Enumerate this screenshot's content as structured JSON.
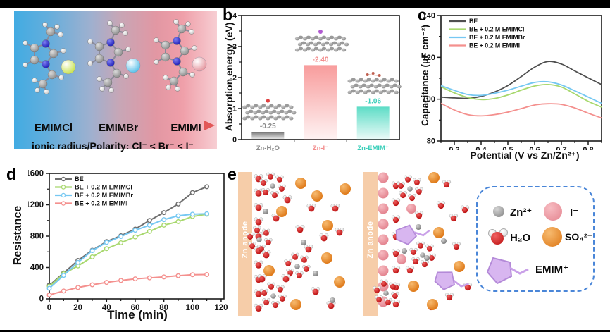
{
  "figure": {
    "panel_labels": {
      "a": "a",
      "b": "b",
      "c": "c",
      "d": "d",
      "e": "e"
    }
  },
  "panel_a": {
    "molecules": [
      {
        "label": "EMIMCl",
        "anion_color": "#c6e148"
      },
      {
        "label": "EMIMBr",
        "anion_color": "#55bfe9"
      },
      {
        "label": "EMIMI",
        "anion_color": "#e4939c"
      }
    ],
    "caption": "ionic radius/Polarity:  Cl⁻ <  Br⁻ <  I⁻"
  },
  "chart_data": [
    {
      "id": "b",
      "type": "bar",
      "ylabel": "Absorption energy (eV)",
      "ylim": [
        0,
        -4
      ],
      "yticks": [
        0,
        -1,
        -2,
        -3,
        -4
      ],
      "categories": [
        "Zn-H₂O",
        "Zn-I⁻",
        "Zn-EMIM⁺"
      ],
      "values": [
        -0.25,
        -2.4,
        -1.06
      ],
      "value_labels": [
        "-0.25",
        "-2.40",
        "-1.06"
      ],
      "bar_colors": [
        "#787878",
        "#f89c9c",
        "#5ddcc6"
      ],
      "label_colors": [
        "#8a8a8a",
        "#f28b8b",
        "#3bcfba"
      ],
      "cluster_accents": [
        "red-dot",
        "purple-dot",
        "emim-sketch"
      ]
    },
    {
      "id": "c",
      "type": "line",
      "ylabel": "Capacitance (μF cm⁻²)",
      "xlabel": "Potential (V vs Zn/Zn²⁺)",
      "xlim": [
        0.25,
        0.85
      ],
      "ylim": [
        80,
        140
      ],
      "xticks": [
        0.3,
        0.4,
        0.5,
        0.6,
        0.7,
        0.8
      ],
      "yticks": [
        80,
        100,
        120,
        140
      ],
      "x": [
        0.25,
        0.3,
        0.35,
        0.4,
        0.45,
        0.5,
        0.55,
        0.6,
        0.65,
        0.7,
        0.75,
        0.8,
        0.85
      ],
      "series": [
        {
          "name": "BE",
          "color": "#4f4f4f",
          "y": [
            101,
            100.6,
            100.4,
            101.3,
            103.4,
            106.5,
            110.8,
            115.3,
            118,
            116.8,
            113.5,
            110.2,
            107
          ]
        },
        {
          "name": "BE + 0.2 M EMIMCl",
          "color": "#a8d86e",
          "y": [
            106,
            103,
            100.8,
            99.8,
            100.3,
            102,
            104.3,
            106.3,
            107,
            105.8,
            102.5,
            99,
            96.2
          ]
        },
        {
          "name": "BE + 0.2 M EMIMBr",
          "color": "#76c8f2",
          "y": [
            106.5,
            104.2,
            102.2,
            101.8,
            102.8,
            104.3,
            106.2,
            108,
            108.3,
            106.8,
            104,
            101,
            98
          ]
        },
        {
          "name": "BE + 0.2 M EMIMI",
          "color": "#f4908e",
          "y": [
            98,
            94.8,
            92.6,
            92,
            92.6,
            93.8,
            95.5,
            97.2,
            97.8,
            97.5,
            95.8,
            93.3,
            91
          ]
        }
      ],
      "legend_position": "top-left"
    },
    {
      "id": "d",
      "type": "line",
      "ylabel": "Resistance",
      "xlabel": "Time (min)",
      "xlim": [
        0,
        122
      ],
      "ylim": [
        0,
        1600
      ],
      "xticks": [
        0,
        20,
        40,
        60,
        80,
        100,
        120
      ],
      "yticks": [
        0,
        400,
        800,
        1200,
        1600
      ],
      "x": [
        0,
        10,
        20,
        30,
        40,
        50,
        60,
        70,
        80,
        90,
        100,
        110
      ],
      "series": [
        {
          "name": "BE",
          "color": "#6e6e6e",
          "y": [
            170,
            330,
            490,
            620,
            730,
            805,
            890,
            1000,
            1100,
            1210,
            1355,
            1430
          ]
        },
        {
          "name": "BE + 0.2 M EMIMCl",
          "color": "#a8d86e",
          "y": [
            160,
            320,
            420,
            535,
            640,
            715,
            790,
            860,
            940,
            985,
            1050,
            1080
          ]
        },
        {
          "name": "BE + 0.2 M EMIMBr",
          "color": "#76c8f2",
          "y": [
            135,
            300,
            465,
            615,
            720,
            795,
            875,
            940,
            1010,
            1060,
            1080,
            1085
          ]
        },
        {
          "name": "BE + 0.2 M EMIMI",
          "color": "#f4908e",
          "y": [
            50,
            100,
            145,
            180,
            210,
            235,
            255,
            268,
            280,
            295,
            308,
            310
          ]
        }
      ],
      "legend_position": "top-left"
    }
  ],
  "panel_e": {
    "anode_label": "Zn anode",
    "legend": [
      {
        "icon": "zn-ion-icon",
        "label": "Zn²⁺"
      },
      {
        "icon": "iodide-ion-icon",
        "label": "I⁻"
      },
      {
        "icon": "water-molecule-icon",
        "label": "H₂O"
      },
      {
        "icon": "sulfate-ion-icon",
        "label": "SO₄²⁻"
      },
      {
        "icon": "emim-cation-icon",
        "label": "EMIM⁺"
      }
    ]
  }
}
